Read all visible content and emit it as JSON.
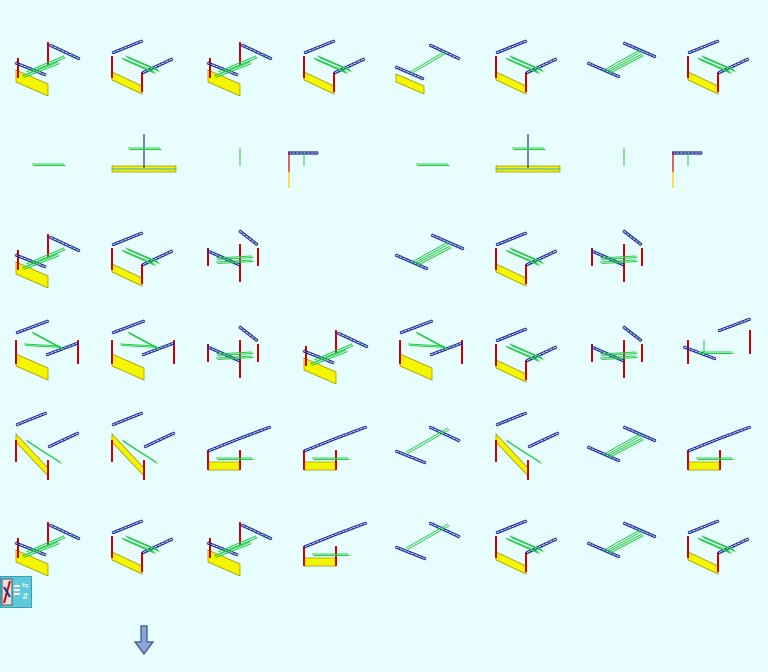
{
  "app": {
    "background": "#e8fefe",
    "palette": {
      "column_red": "#d40000",
      "truss_blue": "#1f2f9c",
      "brace_green": "#22cc44",
      "wall_yellow": "#f5f500",
      "wall_olive": "#9a9a00"
    }
  },
  "thumbnails": [
    {
      "id": "r1c1",
      "icon": "frame-two-trusses-braced-wall-icon"
    },
    {
      "id": "r1c2",
      "icon": "frame-truss-wall-icon"
    },
    {
      "id": "r1c3",
      "icon": "frame-two-trusses-braced-wall-icon"
    },
    {
      "id": "r1c4",
      "icon": "frame-truss-wall-icon"
    },
    {
      "id": "r1c5",
      "icon": "trusses-brace-wall-icon"
    },
    {
      "id": "r1c6",
      "icon": "frame-truss-wall-icon"
    },
    {
      "id": "r1c7",
      "icon": "two-trusses-brace-icon"
    },
    {
      "id": "r1c8",
      "icon": "frame-truss-wall-icon"
    },
    {
      "id": "r2c1",
      "icon": "single-brace-elevation-icon"
    },
    {
      "id": "r2c2",
      "icon": "beam-elevation-icon"
    },
    {
      "id": "r2c3",
      "icon": "vertical-brace-icon"
    },
    {
      "id": "r2c4",
      "icon": "corner-truss-section-icon"
    },
    {
      "id": "r2c5",
      "icon": "single-brace-elevation-icon"
    },
    {
      "id": "r2c6",
      "icon": "beam-elevation-icon"
    },
    {
      "id": "r2c7",
      "icon": "vertical-brace-icon"
    },
    {
      "id": "r2c8",
      "icon": "corner-truss-section-icon"
    },
    {
      "id": "r3c1",
      "icon": "frame-two-trusses-braced-wall-icon"
    },
    {
      "id": "r3c2",
      "icon": "frame-truss-wall-icon"
    },
    {
      "id": "r3c3",
      "icon": "column-frame-icon"
    },
    {
      "id": "r3c4",
      "icon": "empty-slot-icon"
    },
    {
      "id": "r3c5",
      "icon": "two-trusses-brace-icon"
    },
    {
      "id": "r3c6",
      "icon": "frame-truss-wall-icon"
    },
    {
      "id": "r3c7",
      "icon": "column-frame-icon"
    },
    {
      "id": "r3c8",
      "icon": "empty-slot-icon"
    },
    {
      "id": "r4c1",
      "icon": "portal-frame-wall-icon"
    },
    {
      "id": "r4c2",
      "icon": "portal-frame-wall-icon"
    },
    {
      "id": "r4c3",
      "icon": "column-frame-icon"
    },
    {
      "id": "r4c4",
      "icon": "frame-two-trusses-braced-wall-icon"
    },
    {
      "id": "r4c5",
      "icon": "portal-frame-wall-icon"
    },
    {
      "id": "r4c6",
      "icon": "frame-truss-wall-icon"
    },
    {
      "id": "r4c7",
      "icon": "column-frame-icon"
    },
    {
      "id": "r4c8",
      "icon": "portal-frame-icon"
    },
    {
      "id": "r5c1",
      "icon": "diagonal-wall-truss-icon"
    },
    {
      "id": "r5c2",
      "icon": "diagonal-wall-truss-icon"
    },
    {
      "id": "r5c3",
      "icon": "low-wall-trusses-icon"
    },
    {
      "id": "r5c4",
      "icon": "low-wall-trusses-icon"
    },
    {
      "id": "r5c5",
      "icon": "trusses-brace-icon"
    },
    {
      "id": "r5c6",
      "icon": "diagonal-wall-truss-icon"
    },
    {
      "id": "r5c7",
      "icon": "two-trusses-brace-icon"
    },
    {
      "id": "r5c8",
      "icon": "low-wall-trusses-icon"
    },
    {
      "id": "r6c1",
      "icon": "frame-two-trusses-braced-wall-icon"
    },
    {
      "id": "r6c2",
      "icon": "frame-truss-wall-icon"
    },
    {
      "id": "r6c3",
      "icon": "frame-two-trusses-braced-wall-icon"
    },
    {
      "id": "r6c4",
      "icon": "low-wall-trusses-icon"
    },
    {
      "id": "r6c5",
      "icon": "trusses-brace-icon"
    },
    {
      "id": "r6c6",
      "icon": "frame-truss-wall-icon"
    },
    {
      "id": "r6c7",
      "icon": "two-trusses-brace-icon"
    },
    {
      "id": "r6c8",
      "icon": "frame-truss-wall-icon"
    }
  ],
  "toolbox": {
    "icon": "toolbox-icon"
  },
  "scroll": {
    "icon": "arrow-down-icon"
  }
}
